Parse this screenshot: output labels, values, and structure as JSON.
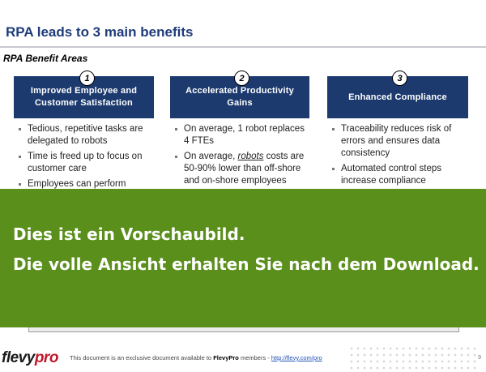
{
  "title": "RPA leads to 3 main benefits",
  "section_label": "RPA Benefit Areas",
  "benefits": [
    {
      "number": "1",
      "heading": "Improved Employee and\nCustomer Satisfaction",
      "bullets": [
        "Tedious, repetitive tasks are delegated to robots",
        "Time is freed up to focus on customer care",
        "Employees can perform"
      ]
    },
    {
      "number": "2",
      "heading": "Accelerated Productivity\nGains",
      "bullets": [
        "On average, 1 robot replaces 4 FTEs",
        {
          "pre": "On average, ",
          "em": "robots",
          "post": " costs are 50-90% lower than off-shore and on-shore employees"
        }
      ]
    },
    {
      "number": "3",
      "heading": "Enhanced Compliance",
      "bullets": [
        "Traceability reduces risk of errors and ensures data consistency",
        "Automated control steps increase compliance"
      ]
    }
  ],
  "banner": {
    "line1": "Dies ist ein Vorschaubild.",
    "line2": "Die volle Ansicht erhalten Sie nach dem Download."
  },
  "footer": {
    "logo_flevy": "flevy",
    "logo_pro": "pro",
    "text_before": "This document is an exclusive document available to ",
    "text_bold": "FlevyPro",
    "text_after": " members - ",
    "link": "http://flevy.com/pro",
    "page": "9"
  },
  "colors": {
    "title": "#1f3b7a",
    "box": "#1c3a6e",
    "banner": "#5a8f1c",
    "logo_pro": "#c0172b"
  }
}
